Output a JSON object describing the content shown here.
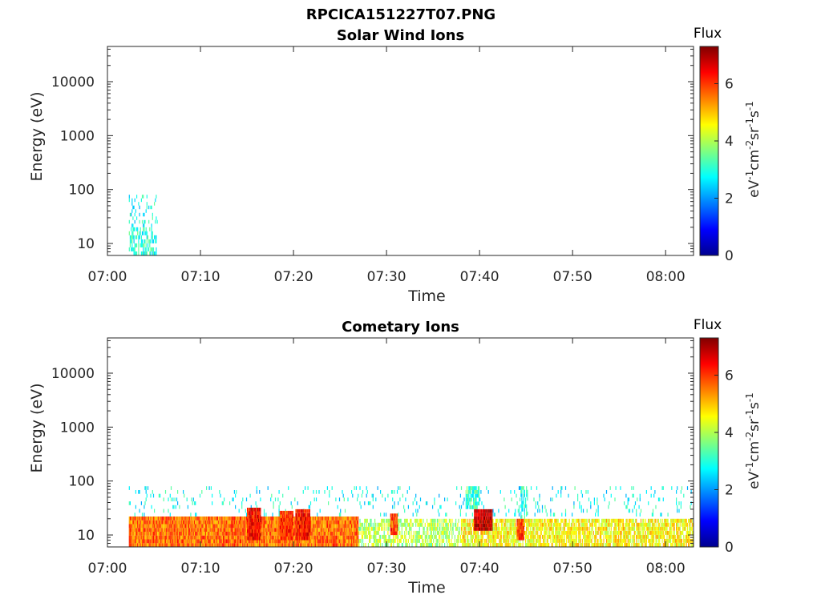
{
  "figure_title": "RPCICA151227T07.PNG",
  "chart_data": [
    {
      "type": "heatmap",
      "title": "Solar Wind Ions",
      "xlabel": "Time",
      "ylabel": "Energy (eV)",
      "x_ticks": [
        "07:00",
        "07:10",
        "07:20",
        "07:30",
        "07:40",
        "07:50",
        "08:00"
      ],
      "x_tick_minutes": [
        0,
        10,
        20,
        30,
        40,
        50,
        60
      ],
      "xlim_minutes": [
        0,
        63
      ],
      "y_scale": "log",
      "ylim": [
        6,
        45000
      ],
      "y_ticks": [
        10,
        100,
        1000,
        10000
      ],
      "y_tick_labels": [
        "10",
        "100",
        "1000",
        "10000"
      ],
      "colorbar": {
        "title": "Flux",
        "label": "eV-1cm-2sr-1s-1",
        "label_parts": [
          [
            "eV",
            ""
          ],
          [
            "-1",
            "sup"
          ],
          [
            "cm",
            ""
          ],
          [
            "-2",
            "sup"
          ],
          [
            "sr",
            ""
          ],
          [
            "-1",
            "sup"
          ],
          [
            "s",
            ""
          ],
          [
            "-1",
            "sup"
          ]
        ],
        "range": [
          0,
          7.3
        ],
        "ticks": [
          0,
          2,
          4,
          6
        ],
        "tick_labels": [
          "0",
          "2",
          "4",
          "6"
        ],
        "colormap": "jet"
      },
      "features": [
        {
          "t_start": 2.3,
          "t_end": 5.4,
          "e_low": 6,
          "e_high": 20,
          "flux": 3.0,
          "density": 0.55
        },
        {
          "t_start": 2.3,
          "t_end": 5.4,
          "e_low": 20,
          "e_high": 80,
          "flux": 2.8,
          "density": 0.18
        }
      ]
    },
    {
      "type": "heatmap",
      "title": "Cometary Ions",
      "xlabel": "Time",
      "ylabel": "Energy (eV)",
      "x_ticks": [
        "07:00",
        "07:10",
        "07:20",
        "07:30",
        "07:40",
        "07:50",
        "08:00"
      ],
      "x_tick_minutes": [
        0,
        10,
        20,
        30,
        40,
        50,
        60
      ],
      "xlim_minutes": [
        0,
        63
      ],
      "y_scale": "log",
      "ylim": [
        6,
        45000
      ],
      "y_ticks": [
        10,
        100,
        1000,
        10000
      ],
      "y_tick_labels": [
        "10",
        "100",
        "1000",
        "10000"
      ],
      "colorbar": {
        "title": "Flux",
        "label": "eV-1cm-2sr-1s-1",
        "label_parts": [
          [
            "eV",
            ""
          ],
          [
            "-1",
            "sup"
          ],
          [
            "cm",
            ""
          ],
          [
            "-2",
            "sup"
          ],
          [
            "sr",
            ""
          ],
          [
            "-1",
            "sup"
          ],
          [
            "s",
            ""
          ],
          [
            "-1",
            "sup"
          ]
        ],
        "range": [
          0,
          7.3
        ],
        "ticks": [
          0,
          2,
          4,
          6
        ],
        "tick_labels": [
          "0",
          "2",
          "4",
          "6"
        ],
        "colormap": "jet"
      },
      "features": [
        {
          "t_start": 2.3,
          "t_end": 27.0,
          "e_low": 6,
          "e_high": 22,
          "flux": 5.6,
          "density": 1.0
        },
        {
          "t_start": 27.0,
          "t_end": 38.0,
          "e_low": 6,
          "e_high": 20,
          "flux": 4.0,
          "density": 0.6
        },
        {
          "t_start": 38.0,
          "t_end": 63.0,
          "e_low": 6,
          "e_high": 20,
          "flux": 4.6,
          "density": 0.8
        },
        {
          "t_start": 2.3,
          "t_end": 63.0,
          "e_low": 22,
          "e_high": 80,
          "flux": 2.8,
          "density": 0.08
        },
        {
          "t_start": 15.0,
          "t_end": 16.5,
          "e_low": 8,
          "e_high": 32,
          "flux": 6.4,
          "density": 1.0
        },
        {
          "t_start": 18.5,
          "t_end": 20.0,
          "e_low": 8,
          "e_high": 28,
          "flux": 6.0,
          "density": 1.0
        },
        {
          "t_start": 20.2,
          "t_end": 21.8,
          "e_low": 8,
          "e_high": 30,
          "flux": 6.3,
          "density": 1.0
        },
        {
          "t_start": 30.4,
          "t_end": 31.2,
          "e_low": 10,
          "e_high": 25,
          "flux": 6.0,
          "density": 1.0
        },
        {
          "t_start": 38.5,
          "t_end": 40.0,
          "e_low": 30,
          "e_high": 80,
          "flux": 3.2,
          "density": 0.8
        },
        {
          "t_start": 39.4,
          "t_end": 41.4,
          "e_low": 12,
          "e_high": 30,
          "flux": 6.8,
          "density": 1.0
        },
        {
          "t_start": 44.0,
          "t_end": 44.8,
          "e_low": 8,
          "e_high": 20,
          "flux": 6.0,
          "density": 1.0
        },
        {
          "t_start": 44.4,
          "t_end": 45.2,
          "e_low": 20,
          "e_high": 80,
          "flux": 3.0,
          "density": 0.5
        }
      ]
    }
  ]
}
